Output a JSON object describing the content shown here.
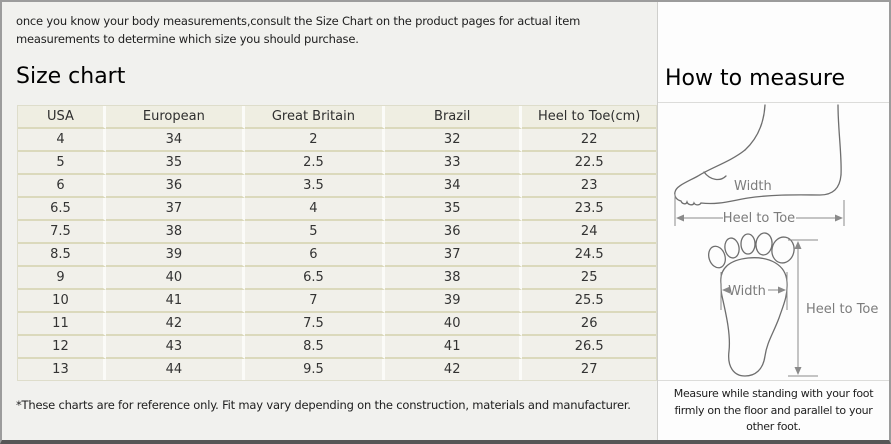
{
  "intro_text": "once you know your body measurements,consult the Size Chart on the product pages for actual item measurements to determine which size you should purchase.",
  "left_section": {
    "title": "Size chart",
    "footnote": "*These charts are for reference only. Fit may vary depending on the construction, materials and manufacturer."
  },
  "right_section": {
    "title": "How to measure",
    "footnote": "Measure while standing with your foot firmly on the floor and parallel to your other foot.",
    "side_diagram": {
      "width_label": "Width",
      "heel_to_toe_label": "Heel to Toe"
    },
    "sole_diagram": {
      "width_label": "Width",
      "heel_to_toe_label": "Heel to Toe"
    }
  },
  "chart_data": {
    "type": "table",
    "title": "Size chart",
    "columns": [
      "USA",
      "European",
      "Great Britain",
      "Brazil",
      "Heel to Toe(cm)"
    ],
    "rows": [
      [
        4,
        34,
        2,
        32,
        22
      ],
      [
        5,
        35,
        2.5,
        33,
        22.5
      ],
      [
        6,
        36,
        3.5,
        34,
        23
      ],
      [
        6.5,
        37,
        4,
        35,
        23.5
      ],
      [
        7.5,
        38,
        5,
        36,
        24
      ],
      [
        8.5,
        39,
        6,
        37,
        24.5
      ],
      [
        9,
        40,
        6.5,
        38,
        25
      ],
      [
        10,
        41,
        7,
        39,
        25.5
      ],
      [
        11,
        42,
        7.5,
        40,
        26
      ],
      [
        12,
        43,
        8.5,
        41,
        26.5
      ],
      [
        13,
        44,
        9.5,
        42,
        27
      ]
    ]
  },
  "colors": {
    "left_panel_bg": "#f1f1ee",
    "right_panel_bg": "#fdfdfd",
    "table_cell_bg": "#f1f0ea",
    "table_header_bg": "#efeee2",
    "table_row_border": "#dbd9bc",
    "frame_border": "#9c9c9c",
    "frame_bottom_border": "#565656"
  }
}
